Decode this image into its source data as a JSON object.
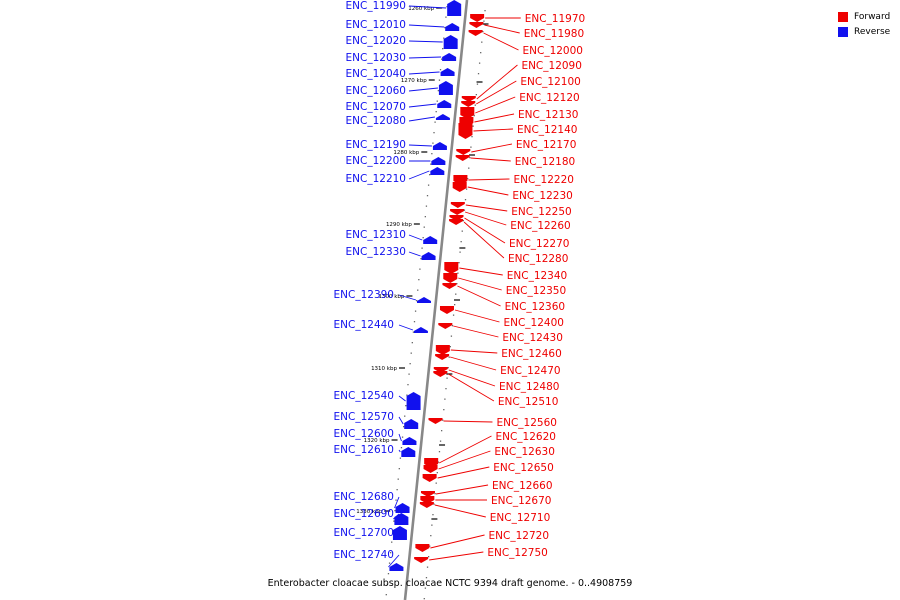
{
  "legend": [
    {
      "label": "Forward",
      "color": "#ee0000"
    },
    {
      "label": "Reverse",
      "color": "#1111ee"
    }
  ],
  "caption": "Enterobacter cloacae subsp. cloacae NCTC 9394 draft genome. - 0..4908759",
  "ticks": [
    "1260 kbp",
    "1270 kbp",
    "1280 kbp",
    "1290 kbp",
    "1300 kbp",
    "1310 kbp",
    "1320 kbp",
    "1330 kbp"
  ],
  "reverse_genes": [
    "ENC_11990",
    "ENC_12010",
    "ENC_12020",
    "ENC_12030",
    "ENC_12040",
    "ENC_12060",
    "ENC_12070",
    "ENC_12080",
    "ENC_12190",
    "ENC_12200",
    "ENC_12210",
    "ENC_12310",
    "ENC_12330",
    "ENC_12390",
    "ENC_12440",
    "ENC_12540",
    "ENC_12570",
    "ENC_12600",
    "ENC_12610",
    "ENC_12680",
    "ENC_12690",
    "ENC_12700",
    "ENC_12740"
  ],
  "forward_genes": [
    "ENC_11970",
    "ENC_11980",
    "ENC_12000",
    "ENC_12090",
    "ENC_12100",
    "ENC_12120",
    "ENC_12130",
    "ENC_12140",
    "ENC_12170",
    "ENC_12180",
    "ENC_12220",
    "ENC_12230",
    "ENC_12250",
    "ENC_12260",
    "ENC_12270",
    "ENC_12280",
    "ENC_12340",
    "ENC_12350",
    "ENC_12360",
    "ENC_12400",
    "ENC_12430",
    "ENC_12460",
    "ENC_12470",
    "ENC_12480",
    "ENC_12510",
    "ENC_12560",
    "ENC_12620",
    "ENC_12630",
    "ENC_12650",
    "ENC_12660",
    "ENC_12670",
    "ENC_12710",
    "ENC_12720",
    "ENC_12750"
  ]
}
